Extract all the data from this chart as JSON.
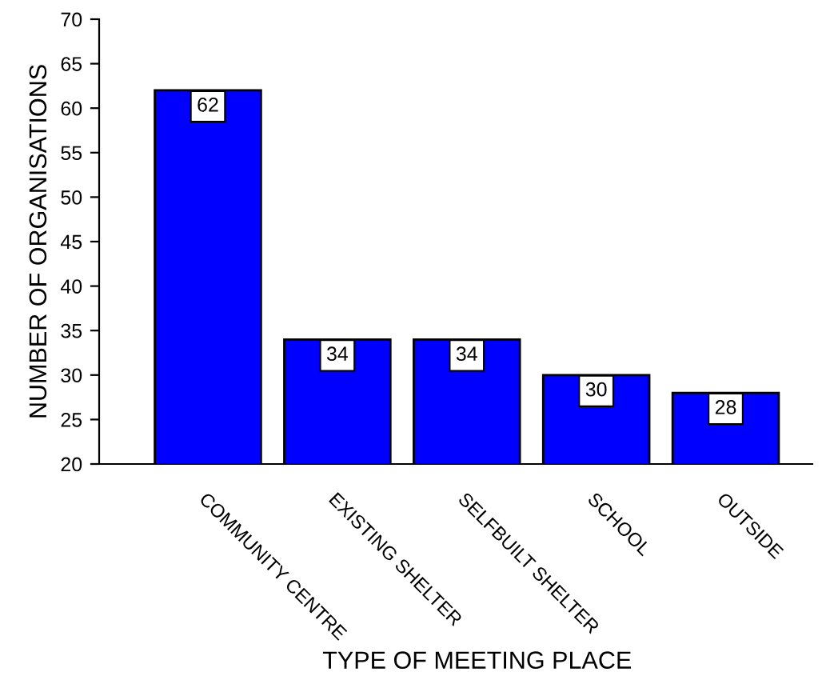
{
  "chart_data": {
    "type": "bar",
    "xlabel": "TYPE OF MEETING PLACE",
    "ylabel": "NUMBER OF ORGANISATIONS",
    "categories": [
      "COMMUNITY CENTRE",
      "EXISTING SHELTER",
      "SELFBUILT SHELTER",
      "SCHOOL",
      "OUTSIDE"
    ],
    "values": [
      62,
      34,
      34,
      30,
      28
    ],
    "color": "#0000ff",
    "ylim": [
      20,
      70
    ],
    "yticks": [
      20,
      25,
      30,
      35,
      40,
      45,
      50,
      55,
      60,
      65,
      70
    ],
    "grid": false,
    "data_labels": true
  }
}
